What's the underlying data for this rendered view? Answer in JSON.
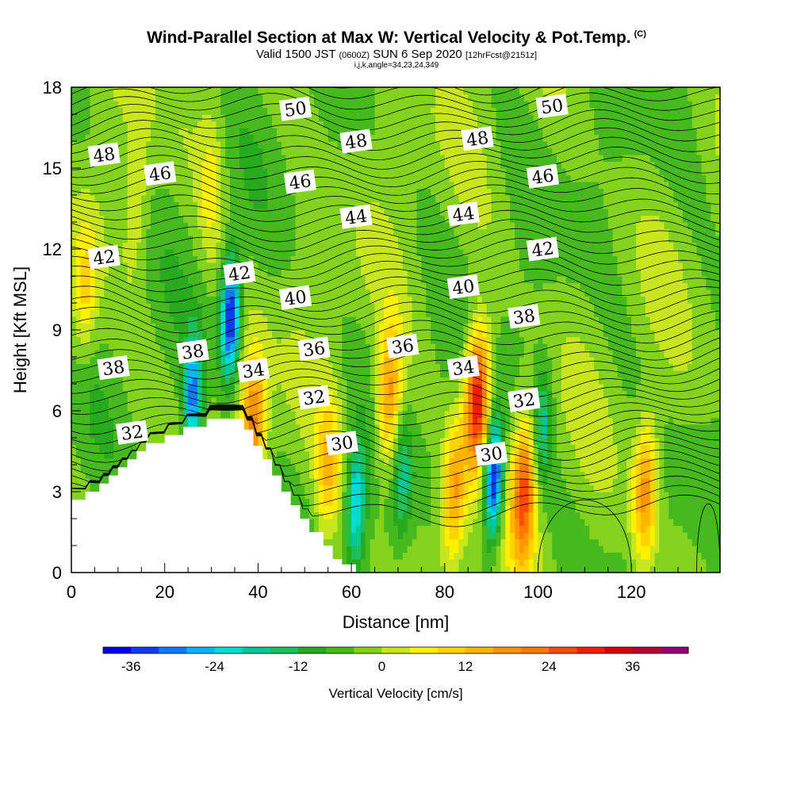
{
  "chart_data": {
    "type": "contour_cross_section",
    "title": "Wind-Parallel Section at Max W: Vertical Velocity & Pot.Temp.",
    "title_mark": "(C)",
    "subtitle_parts": [
      "Valid 1500 JST",
      "(0600Z)",
      "SUN 6 Sep 2020",
      "[12hrFcst@2151z]"
    ],
    "subtitle2": "i,j,k,angle=34,23,24,349",
    "xlabel": "Distance [nm]",
    "ylabel": "Height [Kft MSL]",
    "xlim": [
      0,
      139
    ],
    "ylim": [
      0,
      18
    ],
    "xticks": [
      0,
      20,
      40,
      60,
      80,
      100,
      120
    ],
    "yticks": [
      0,
      3,
      6,
      9,
      12,
      15,
      18
    ],
    "colorbar": {
      "label": "Vertical Velocity [cm/s]",
      "ticks": [
        -36,
        -24,
        -12,
        0,
        12,
        24,
        36
      ],
      "levels": [
        -40,
        -36,
        -32,
        -28,
        -24,
        -20,
        -16,
        -12,
        -8,
        -4,
        0,
        4,
        8,
        12,
        16,
        20,
        24,
        28,
        32,
        36,
        40,
        44
      ],
      "colors": [
        "#0000e6",
        "#0f3cf0",
        "#1478ff",
        "#00b4ff",
        "#00dcd2",
        "#00c896",
        "#1ebe5a",
        "#28aa1e",
        "#46b91e",
        "#82d21e",
        "#c8e61e",
        "#fff000",
        "#ffd200",
        "#ffb400",
        "#ff9600",
        "#ff7800",
        "#ff4b00",
        "#f01e00",
        "#d20000",
        "#b40032",
        "#8c0078",
        "#5a00a0"
      ]
    },
    "vertical_velocity_features": [
      {
        "x": 3,
        "y": 10.5,
        "w": 12,
        "kind": "updraft"
      },
      {
        "x": 14,
        "y": 13.5,
        "w": 6,
        "kind": "updraft"
      },
      {
        "x": 30,
        "y": 14.5,
        "w": 8,
        "kind": "updraft"
      },
      {
        "x": 26,
        "y": 6.5,
        "w": -26,
        "kind": "downdraft"
      },
      {
        "x": 34,
        "y": 9.5,
        "w": -36,
        "kind": "downdraft"
      },
      {
        "x": 39,
        "y": 5.5,
        "w": 24,
        "kind": "updraft"
      },
      {
        "x": 55,
        "y": 4.0,
        "w": 14,
        "kind": "updraft"
      },
      {
        "x": 61,
        "y": 2.5,
        "w": -22,
        "kind": "downdraft"
      },
      {
        "x": 68,
        "y": 6.5,
        "w": 22,
        "kind": "updraft"
      },
      {
        "x": 71,
        "y": 3.5,
        "w": -12,
        "kind": "downdraft"
      },
      {
        "x": 82,
        "y": 3.0,
        "w": 20,
        "kind": "updraft"
      },
      {
        "x": 87,
        "y": 6.5,
        "w": 36,
        "kind": "updraft"
      },
      {
        "x": 90.5,
        "y": 3.5,
        "w": -38,
        "kind": "downdraft"
      },
      {
        "x": 97,
        "y": 3.0,
        "w": 28,
        "kind": "updraft"
      },
      {
        "x": 101,
        "y": 5.5,
        "w": -14,
        "kind": "downdraft"
      },
      {
        "x": 123,
        "y": 3.0,
        "w": 22,
        "kind": "updraft"
      }
    ],
    "isentropes": {
      "levels_K_C": [
        30,
        32,
        34,
        36,
        38,
        40,
        42,
        44,
        46,
        48,
        50
      ],
      "labels": [
        {
          "text": "48",
          "x": 7,
          "y": 15.5
        },
        {
          "text": "46",
          "x": 19,
          "y": 14.8
        },
        {
          "text": "42",
          "x": 7,
          "y": 11.7
        },
        {
          "text": "42",
          "x": 36,
          "y": 11.1
        },
        {
          "text": "38",
          "x": 9,
          "y": 7.6
        },
        {
          "text": "38",
          "x": 26,
          "y": 8.2
        },
        {
          "text": "34",
          "x": 39,
          "y": 7.5
        },
        {
          "text": "32",
          "x": 13,
          "y": 5.2
        },
        {
          "text": "50",
          "x": 48,
          "y": 17.2
        },
        {
          "text": "48",
          "x": 61,
          "y": 16.0
        },
        {
          "text": "46",
          "x": 49,
          "y": 14.5
        },
        {
          "text": "44",
          "x": 61,
          "y": 13.2
        },
        {
          "text": "40",
          "x": 48,
          "y": 10.2
        },
        {
          "text": "36",
          "x": 52,
          "y": 8.3
        },
        {
          "text": "32",
          "x": 52,
          "y": 6.5
        },
        {
          "text": "30",
          "x": 58,
          "y": 4.8
        },
        {
          "text": "36",
          "x": 71,
          "y": 8.4
        },
        {
          "text": "48",
          "x": 87,
          "y": 16.1
        },
        {
          "text": "44",
          "x": 84,
          "y": 13.3
        },
        {
          "text": "40",
          "x": 84,
          "y": 10.6
        },
        {
          "text": "34",
          "x": 84,
          "y": 7.6
        },
        {
          "text": "30",
          "x": 90,
          "y": 4.4
        },
        {
          "text": "50",
          "x": 103,
          "y": 17.3
        },
        {
          "text": "46",
          "x": 101,
          "y": 14.7
        },
        {
          "text": "42",
          "x": 101,
          "y": 12.0
        },
        {
          "text": "38",
          "x": 97,
          "y": 9.5
        },
        {
          "text": "32",
          "x": 97,
          "y": 6.4
        }
      ]
    },
    "terrain_kft": [
      [
        0,
        2.7
      ],
      [
        3,
        2.7
      ],
      [
        3,
        3
      ],
      [
        6,
        3
      ],
      [
        6,
        3.3
      ],
      [
        8,
        3.3
      ],
      [
        8,
        3.6
      ],
      [
        10,
        3.6
      ],
      [
        10,
        3.9
      ],
      [
        12,
        3.9
      ],
      [
        12,
        4.2
      ],
      [
        14,
        4.2
      ],
      [
        14,
        4.5
      ],
      [
        16,
        4.5
      ],
      [
        16,
        4.8
      ],
      [
        20,
        4.8
      ],
      [
        20,
        5.1
      ],
      [
        24,
        5.1
      ],
      [
        24,
        5.4
      ],
      [
        29,
        5.4
      ],
      [
        29,
        5.7
      ],
      [
        37,
        5.7
      ],
      [
        37,
        5.3
      ],
      [
        39,
        5.3
      ],
      [
        39,
        4.7
      ],
      [
        41,
        4.7
      ],
      [
        41,
        4.2
      ],
      [
        43,
        4.2
      ],
      [
        43,
        3.6
      ],
      [
        45,
        3.6
      ],
      [
        45,
        3.0
      ],
      [
        47,
        3.0
      ],
      [
        47,
        2.5
      ],
      [
        49,
        2.5
      ],
      [
        49,
        2.0
      ],
      [
        51,
        2.0
      ],
      [
        51,
        1.5
      ],
      [
        54,
        1.5
      ],
      [
        54,
        1.0
      ],
      [
        56,
        1.0
      ],
      [
        56,
        0.5
      ],
      [
        58,
        0.5
      ],
      [
        58,
        0.3
      ],
      [
        61,
        0.3
      ],
      [
        61,
        0
      ],
      [
        139,
        0
      ]
    ]
  }
}
